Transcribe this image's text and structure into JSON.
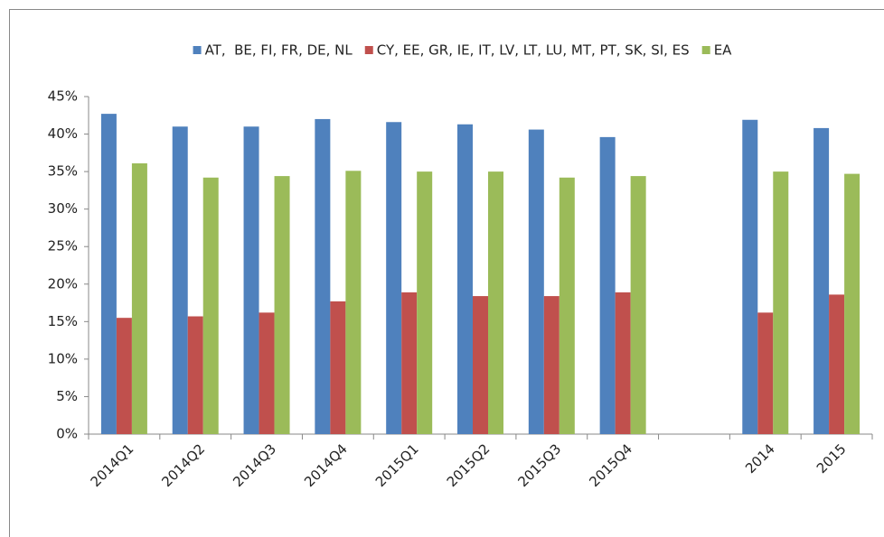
{
  "chart_data": {
    "type": "bar",
    "categories": [
      "2014Q1",
      "2014Q2",
      "2014Q3",
      "2014Q4",
      "2015Q1",
      "2015Q2",
      "2015Q3",
      "2015Q4",
      null,
      "2014",
      "2015"
    ],
    "series": [
      {
        "name": "AT,  BE, FI, FR, DE, NL",
        "color": "#4f81bd",
        "values": [
          42.7,
          41.0,
          41.0,
          42.0,
          41.6,
          41.3,
          40.6,
          39.6,
          null,
          41.9,
          40.8
        ]
      },
      {
        "name": "CY, EE, GR, IE, IT, LV, LT, LU, MT, PT, SK, SI, ES",
        "color": "#c0504d",
        "values": [
          15.5,
          15.7,
          16.2,
          17.7,
          18.9,
          18.4,
          18.4,
          18.9,
          null,
          16.2,
          18.6
        ]
      },
      {
        "name": "EA",
        "color": "#9bbb59",
        "values": [
          36.1,
          34.2,
          34.4,
          35.1,
          35.0,
          35.0,
          34.2,
          34.4,
          null,
          35.0,
          34.7
        ]
      }
    ],
    "ylim": [
      0,
      45
    ],
    "yticks": [
      {
        "value": 0,
        "label": "0%"
      },
      {
        "value": 5,
        "label": "5%"
      },
      {
        "value": 10,
        "label": "10%"
      },
      {
        "value": 15,
        "label": "15%"
      },
      {
        "value": 20,
        "label": "20%"
      },
      {
        "value": 25,
        "label": "25%"
      },
      {
        "value": 30,
        "label": "30%"
      },
      {
        "value": 35,
        "label": "35%"
      },
      {
        "value": 40,
        "label": "40%"
      },
      {
        "value": 45,
        "label": "45%"
      }
    ],
    "grid": false,
    "legend": "top"
  }
}
